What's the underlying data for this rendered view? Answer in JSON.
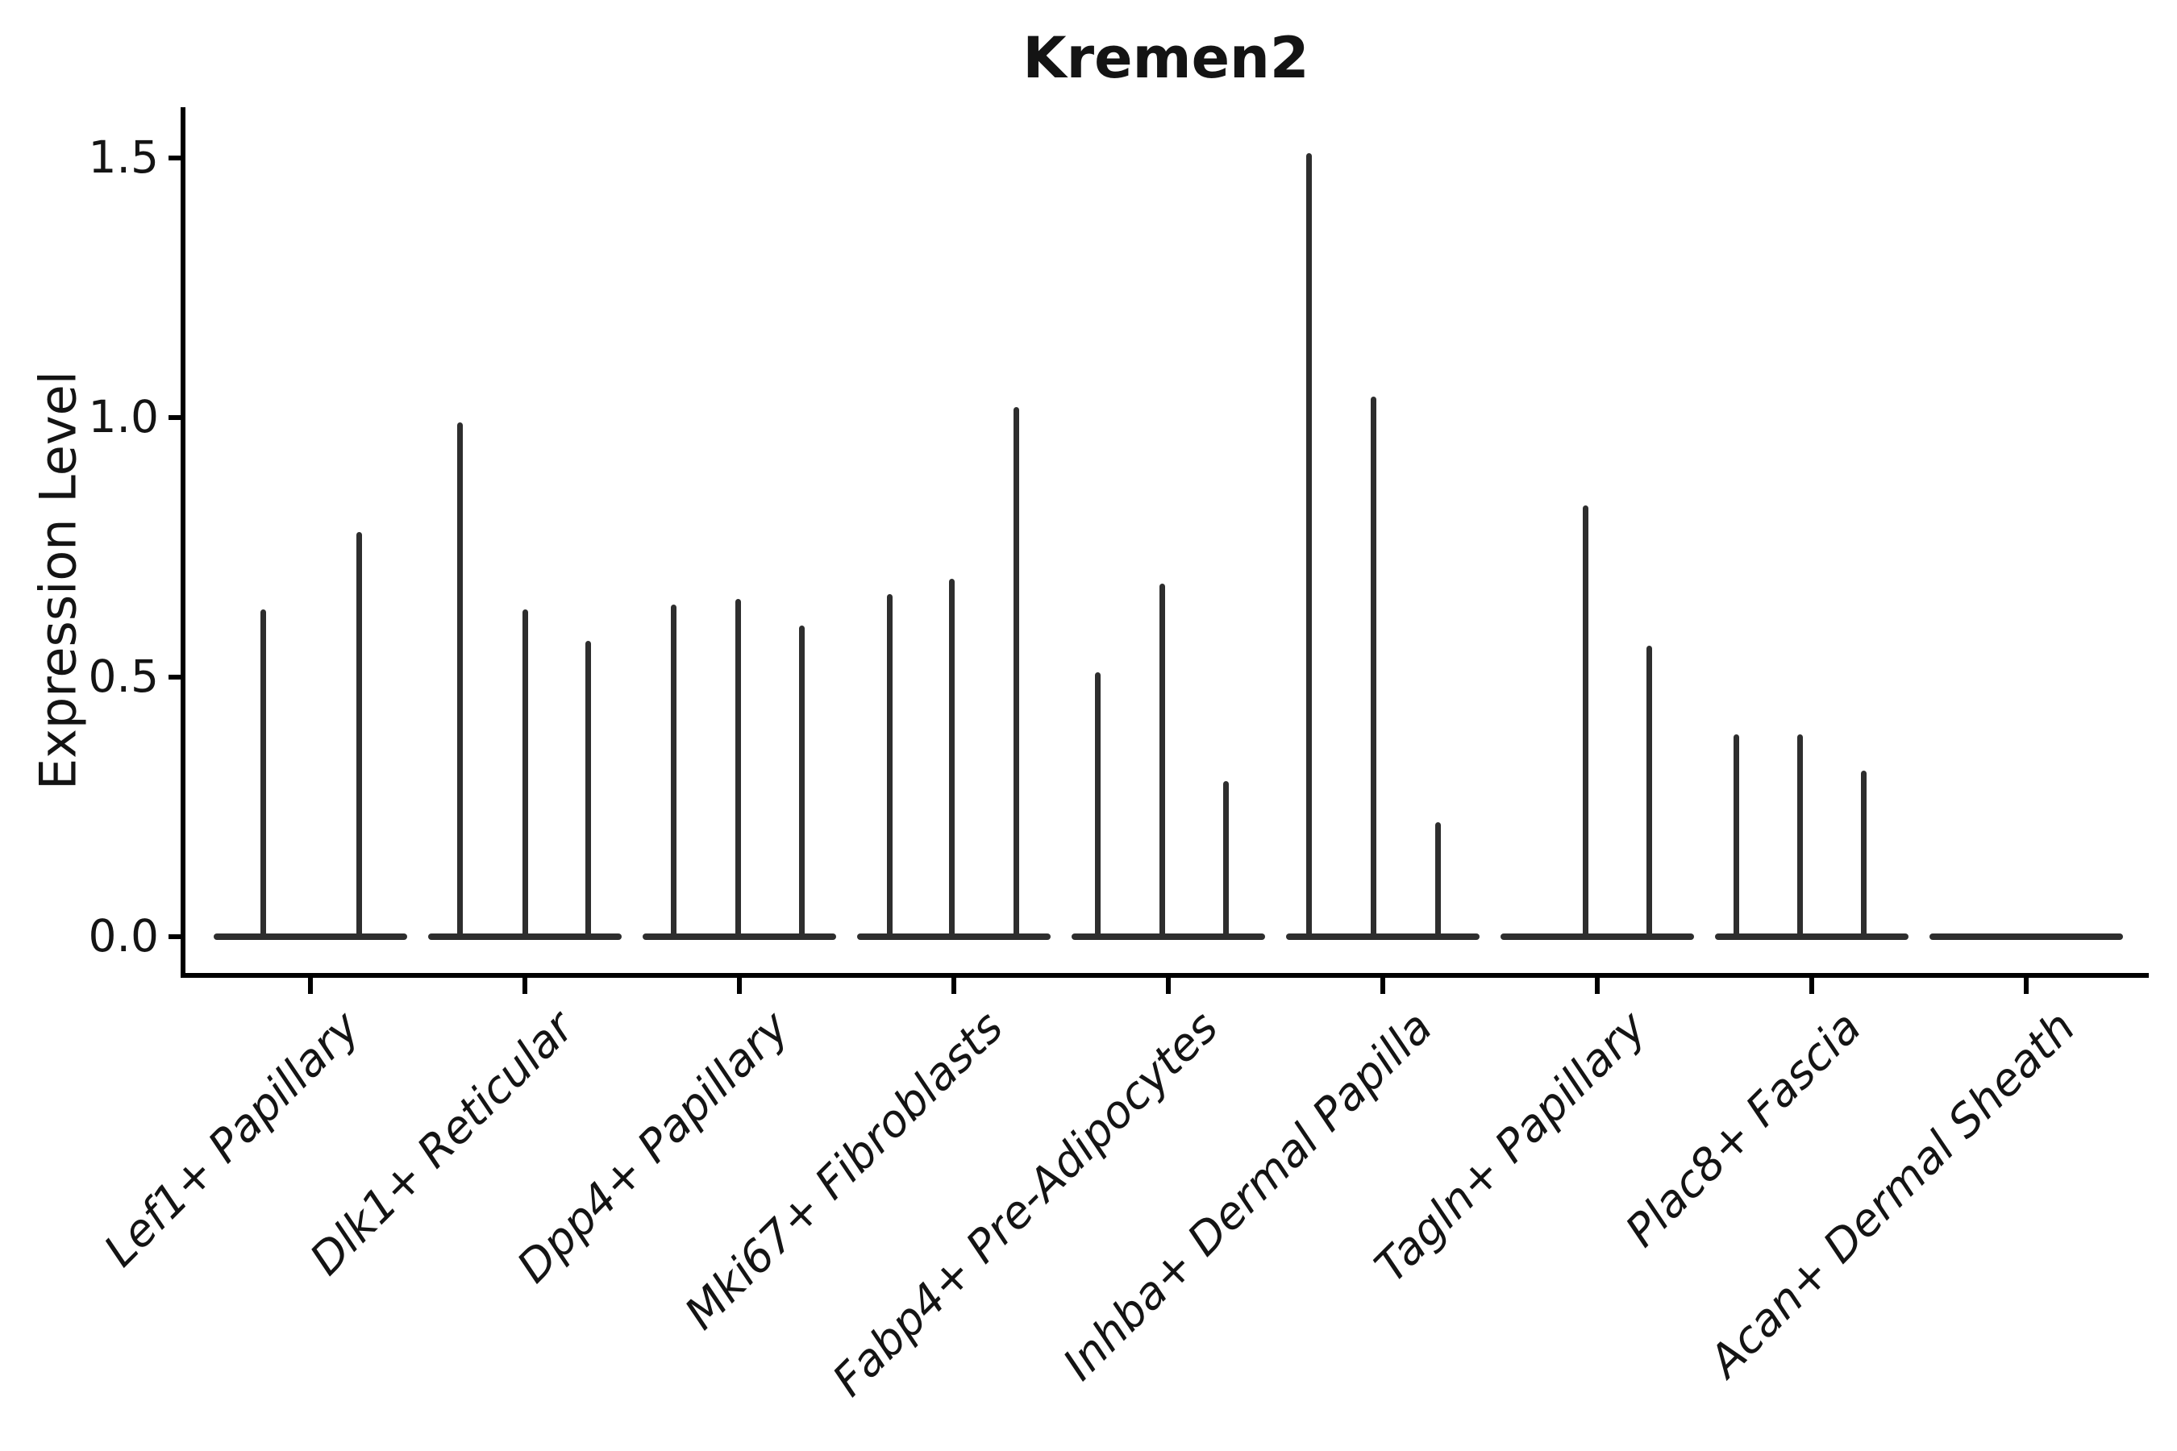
{
  "title": "Kremen2",
  "y_axis": {
    "label": "Expression Level",
    "tick_labels": [
      "0.0",
      "0.5",
      "1.0",
      "1.5"
    ]
  },
  "ink_color": "#2e2e2e",
  "chart_data": {
    "type": "violin",
    "title": "Kremen2",
    "xlabel": "",
    "ylabel": "Expression Level",
    "ylim": [
      0,
      1.6
    ],
    "yticks": [
      0.0,
      0.5,
      1.0,
      1.5
    ],
    "grid": false,
    "legend": "none",
    "note": "Needle-thin violins (collapsed at 0 with single expressing-cell spikes); 2-3 sub-violins per cluster; spike dx = pixel offset of sub-violin center from cluster center",
    "categories": [
      "Lef1+ Papillary",
      "Dlk1+ Reticular",
      "Dpp4+ Papillary",
      "Mki67+ Fibroblasts",
      "Fabp4+ Pre-Adipocytes",
      "Inhba+ Dermal Papilla",
      "Tagln+ Papillary",
      "Plac8+ Fascia",
      "Acan+ Dermal Sheath"
    ],
    "groups": [
      {
        "label": "Lef1+ Papillary",
        "spikes": [
          {
            "dx": -59,
            "value": 0.63
          },
          {
            "dx": 60,
            "value": 0.78
          }
        ]
      },
      {
        "label": "Dlk1+ Reticular",
        "spikes": [
          {
            "dx": -81,
            "value": 0.99
          },
          {
            "dx": 0,
            "value": 0.63
          },
          {
            "dx": 78,
            "value": 0.57
          }
        ]
      },
      {
        "label": "Dpp4+ Papillary",
        "spikes": [
          {
            "dx": -82,
            "value": 0.64
          },
          {
            "dx": -2,
            "value": 0.65
          },
          {
            "dx": 77,
            "value": 0.6
          }
        ]
      },
      {
        "label": "Mki67+ Fibroblasts",
        "spikes": [
          {
            "dx": -80,
            "value": 0.66
          },
          {
            "dx": -3,
            "value": 0.69
          },
          {
            "dx": 77,
            "value": 1.02
          }
        ]
      },
      {
        "label": "Fabp4+ Pre-Adipocytes",
        "spikes": [
          {
            "dx": -88,
            "value": 0.51
          },
          {
            "dx": -8,
            "value": 0.68
          },
          {
            "dx": 71,
            "value": 0.3
          }
        ]
      },
      {
        "label": "Inhba+ Dermal Papilla",
        "spikes": [
          {
            "dx": -92,
            "value": 1.51
          },
          {
            "dx": -12,
            "value": 1.04
          },
          {
            "dx": 68,
            "value": 0.22
          }
        ]
      },
      {
        "label": "Tagln+ Papillary",
        "spikes": [
          {
            "dx": -15,
            "value": 0.83
          },
          {
            "dx": 64,
            "value": 0.56
          }
        ]
      },
      {
        "label": "Plac8+ Fascia",
        "spikes": [
          {
            "dx": -94,
            "value": 0.39
          },
          {
            "dx": -15,
            "value": 0.39
          },
          {
            "dx": 64,
            "value": 0.32
          }
        ]
      },
      {
        "label": "Acan+ Dermal Sheath",
        "spikes": []
      }
    ]
  }
}
